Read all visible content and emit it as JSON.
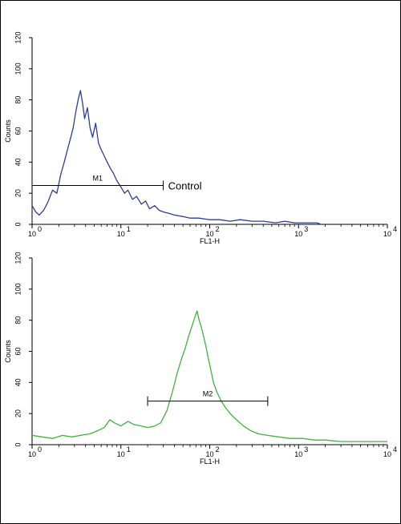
{
  "chart_data": [
    {
      "type": "line",
      "title": "",
      "xlabel": "FL1-H",
      "ylabel": "Counts",
      "xscale": "log",
      "xlim": [
        1,
        10000
      ],
      "ylim": [
        0,
        120
      ],
      "x_ticks": [
        {
          "base": "10",
          "exp": "0"
        },
        {
          "base": "10",
          "exp": "1"
        },
        {
          "base": "10",
          "exp": "2"
        },
        {
          "base": "10",
          "exp": "3"
        },
        {
          "base": "10",
          "exp": "4"
        }
      ],
      "y_ticks": [
        "0",
        "20",
        "40",
        "60",
        "80",
        "100",
        "120"
      ],
      "grid": false,
      "color": "#2b3d9a",
      "series": [
        {
          "x": [
            1.0,
            1.1,
            1.2,
            1.35,
            1.5,
            1.7,
            1.9,
            2.1,
            2.3,
            2.5,
            2.7,
            2.9,
            3.1,
            3.3,
            3.5,
            3.7,
            3.9,
            4.2,
            4.5,
            4.8,
            5.2,
            5.6,
            6.0,
            6.5,
            7.0,
            7.6,
            8.2,
            9.0,
            10,
            11,
            12,
            13.5,
            15,
            17,
            19,
            21,
            24,
            27,
            30,
            35,
            40,
            50,
            60,
            75,
            100,
            130,
            170,
            220,
            300,
            400,
            550,
            700,
            900,
            1200,
            1600,
            1800
          ],
          "y": [
            12,
            8,
            6,
            9,
            14,
            22,
            20,
            32,
            40,
            48,
            55,
            62,
            72,
            80,
            86,
            78,
            68,
            75,
            62,
            56,
            65,
            52,
            48,
            44,
            40,
            36,
            33,
            28,
            24,
            20,
            22,
            16,
            18,
            13,
            15,
            10,
            12,
            9,
            8,
            7,
            6,
            5,
            4,
            4,
            3,
            3,
            2,
            3,
            2,
            2,
            1,
            2,
            1,
            1,
            1,
            0
          ]
        }
      ],
      "marker": {
        "label": "M1",
        "x_start": 1.0,
        "x_end": 30,
        "y": 25
      },
      "annotations": [
        {
          "text": "Control",
          "x": 34,
          "y": 25
        }
      ]
    },
    {
      "type": "line",
      "title": "",
      "xlabel": "FL1-H",
      "ylabel": "Counts",
      "xscale": "log",
      "xlim": [
        1,
        10000
      ],
      "ylim": [
        0,
        120
      ],
      "x_ticks": [
        {
          "base": "10",
          "exp": "0"
        },
        {
          "base": "10",
          "exp": "1"
        },
        {
          "base": "10",
          "exp": "2"
        },
        {
          "base": "10",
          "exp": "3"
        },
        {
          "base": "10",
          "exp": "4"
        }
      ],
      "y_ticks": [
        "0",
        "20",
        "40",
        "60",
        "80",
        "100",
        "120"
      ],
      "grid": false,
      "color": "#3fb33c",
      "series": [
        {
          "x": [
            1.0,
            1.3,
            1.7,
            2.2,
            2.8,
            3.5,
            4.5,
            5.5,
            6.5,
            7.5,
            8.5,
            10,
            12,
            14,
            17,
            20,
            24,
            28,
            33,
            38,
            43,
            48,
            53,
            58,
            63,
            68,
            72,
            76,
            80,
            85,
            90,
            96,
            103,
            110,
            120,
            135,
            150,
            170,
            200,
            240,
            290,
            350,
            450,
            600,
            800,
            1100,
            1500,
            2000,
            3000,
            5000,
            8000,
            10000
          ],
          "y": [
            6,
            5,
            4,
            6,
            5,
            6,
            7,
            9,
            11,
            16,
            14,
            12,
            15,
            13,
            12,
            11,
            12,
            14,
            22,
            34,
            46,
            55,
            62,
            70,
            76,
            82,
            86,
            80,
            76,
            70,
            64,
            56,
            48,
            40,
            34,
            28,
            24,
            20,
            16,
            12,
            9,
            7,
            6,
            5,
            4,
            4,
            3,
            3,
            2,
            2,
            2,
            2
          ]
        }
      ],
      "marker": {
        "label": "M2",
        "x_start": 20,
        "x_end": 450,
        "y": 28
      },
      "annotations": []
    }
  ]
}
